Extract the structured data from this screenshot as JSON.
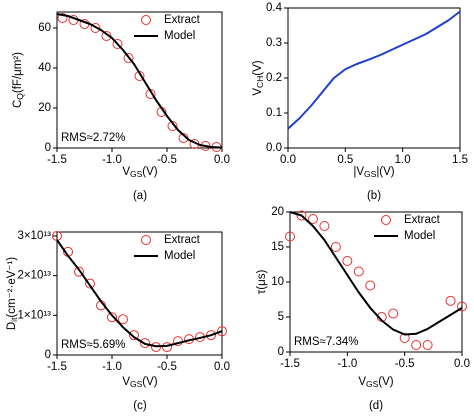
{
  "chart_data": [
    {
      "type": "line",
      "caption": "(a)",
      "x_label": [
        "V",
        "GS",
        "(V)"
      ],
      "y_label": [
        "C",
        "Q",
        "(fF/μm²)"
      ],
      "annotation": "RMS≈2.72%",
      "annotation_color": "#e8312f",
      "xlim": [
        -1.5,
        0
      ],
      "xticks": [
        -1.5,
        {
          "value": -1,
          "label": "-1.0"
        },
        -0.5,
        {
          "value": 0,
          "label": "0.0"
        }
      ],
      "ylim": [
        0,
        68
      ],
      "yticks": [
        0,
        20,
        40,
        60
      ],
      "series": [
        {
          "name": "Extract",
          "color": "#e8312f",
          "style": "marker",
          "x": [
            -1.45,
            -1.35,
            -1.25,
            -1.15,
            -1.05,
            -0.95,
            -0.85,
            -0.75,
            -0.65,
            -0.55,
            -0.45,
            -0.35,
            -0.25,
            -0.15,
            -0.05
          ],
          "values": [
            65,
            64,
            62,
            60,
            56,
            52,
            45,
            36,
            27,
            18,
            11,
            5,
            2,
            1,
            0.5
          ]
        },
        {
          "name": "Model",
          "color": "#000000",
          "style": "line",
          "x": [
            -1.5,
            -1.4,
            -1.3,
            -1.2,
            -1.1,
            -1.0,
            -0.9,
            -0.8,
            -0.7,
            -0.6,
            -0.5,
            -0.4,
            -0.3,
            -0.2,
            -0.1,
            0
          ],
          "values": [
            67,
            66,
            64,
            62,
            59,
            55,
            49,
            42,
            33,
            24,
            16,
            9,
            4,
            1.5,
            0.5,
            0.2
          ]
        }
      ]
    },
    {
      "type": "line",
      "caption": "(b)",
      "x_label": [
        "|V",
        "GS",
        "|(V)"
      ],
      "y_label": [
        "V",
        "CH",
        "(V)"
      ],
      "xlim": [
        0,
        1.5
      ],
      "xticks": [
        {
          "value": 0,
          "label": "0.0"
        },
        0.5,
        {
          "value": 1,
          "label": "1.0"
        },
        1.5
      ],
      "ylim": [
        0,
        0.4
      ],
      "yticks": [
        {
          "value": 0,
          "label": "0.0"
        },
        0.1,
        0.2,
        0.3,
        0.4
      ],
      "series": [
        {
          "name": "V_CH",
          "color": "#1f3fd1",
          "style": "line",
          "x": [
            0,
            0.1,
            0.2,
            0.3,
            0.4,
            0.5,
            0.6,
            0.7,
            0.8,
            0.9,
            1.0,
            1.1,
            1.2,
            1.3,
            1.4,
            1.5
          ],
          "values": [
            0.055,
            0.085,
            0.12,
            0.16,
            0.2,
            0.225,
            0.24,
            0.252,
            0.265,
            0.28,
            0.295,
            0.31,
            0.325,
            0.345,
            0.365,
            0.39
          ]
        }
      ]
    },
    {
      "type": "line",
      "caption": "(c)",
      "x_label": [
        "V",
        "GS",
        "(V)"
      ],
      "y_label": [
        "D",
        "it",
        "(cm⁻²·eV⁻¹)"
      ],
      "annotation": "RMS≈5.69%",
      "annotation_color": "#e8312f",
      "xlim": [
        -1.5,
        0
      ],
      "xticks": [
        -1.5,
        {
          "value": -1,
          "label": "-1.0"
        },
        -0.5,
        {
          "value": 0,
          "label": "0.0"
        }
      ],
      "ylim": [
        0,
        31000000000000
      ],
      "yticks": [
        0,
        {
          "value": 10000000000000,
          "label": "1×10¹³"
        },
        {
          "value": 20000000000000,
          "label": "2×10¹³"
        },
        {
          "value": 30000000000000,
          "label": "3×10¹³"
        }
      ],
      "series": [
        {
          "name": "Extract",
          "color": "#e8312f",
          "style": "marker",
          "x": [
            -1.5,
            -1.4,
            -1.3,
            -1.2,
            -1.1,
            -1.0,
            -0.9,
            -0.8,
            -0.7,
            -0.6,
            -0.5,
            -0.4,
            -0.3,
            -0.2,
            -0.1,
            0
          ],
          "values": [
            30000000000000,
            26000000000000,
            21000000000000,
            18000000000000,
            12500000000000,
            9500000000000,
            9000000000000,
            5000000000000,
            3000000000000,
            2000000000000,
            2000000000000,
            3500000000000,
            4000000000000,
            4500000000000,
            5000000000000,
            6000000000000
          ]
        },
        {
          "name": "Model",
          "color": "#000000",
          "style": "line",
          "x": [
            -1.5,
            -1.4,
            -1.3,
            -1.2,
            -1.1,
            -1.0,
            -0.9,
            -0.8,
            -0.7,
            -0.6,
            -0.5,
            -0.4,
            -0.3,
            -0.2,
            -0.1,
            0
          ],
          "values": [
            29000000000000,
            25000000000000,
            21500000000000,
            17500000000000,
            13500000000000,
            10000000000000,
            7000000000000,
            4500000000000,
            2800000000000,
            2200000000000,
            2300000000000,
            3000000000000,
            3700000000000,
            4300000000000,
            5000000000000,
            6000000000000
          ]
        }
      ]
    },
    {
      "type": "line",
      "caption": "(d)",
      "x_label": [
        "V",
        "GS",
        "(V)"
      ],
      "y_label": [
        "τ(μs)"
      ],
      "annotation": "RMS≈7.34%",
      "annotation_color": "#e8312f",
      "xlim": [
        -1.5,
        0
      ],
      "xticks": [
        -1.5,
        {
          "value": -1,
          "label": "-1.0"
        },
        -0.5,
        {
          "value": 0,
          "label": "0.0"
        }
      ],
      "ylim": [
        0,
        20
      ],
      "yticks": [
        0,
        5,
        10,
        15,
        20
      ],
      "series": [
        {
          "name": "Extract",
          "color": "#e8312f",
          "style": "marker",
          "x": [
            -1.5,
            -1.4,
            -1.3,
            -1.2,
            -1.1,
            -1.0,
            -0.9,
            -0.8,
            -0.7,
            -0.6,
            -0.5,
            -0.4,
            -0.3,
            -0.1,
            0
          ],
          "values": [
            16.5,
            19.5,
            19,
            18,
            15,
            13,
            11.5,
            9.5,
            5,
            5.5,
            2,
            1,
            1,
            7.3,
            6.5
          ]
        },
        {
          "name": "Model",
          "color": "#000000",
          "style": "line",
          "x": [
            -1.5,
            -1.4,
            -1.3,
            -1.2,
            -1.1,
            -1.0,
            -0.9,
            -0.8,
            -0.7,
            -0.6,
            -0.5,
            -0.4,
            -0.3,
            -0.2,
            -0.1,
            0
          ],
          "values": [
            20,
            19.5,
            18,
            16,
            13.5,
            11,
            8.5,
            6.3,
            4.5,
            3.2,
            2.5,
            2.6,
            3.3,
            4.3,
            5.3,
            6.3
          ]
        }
      ]
    }
  ]
}
